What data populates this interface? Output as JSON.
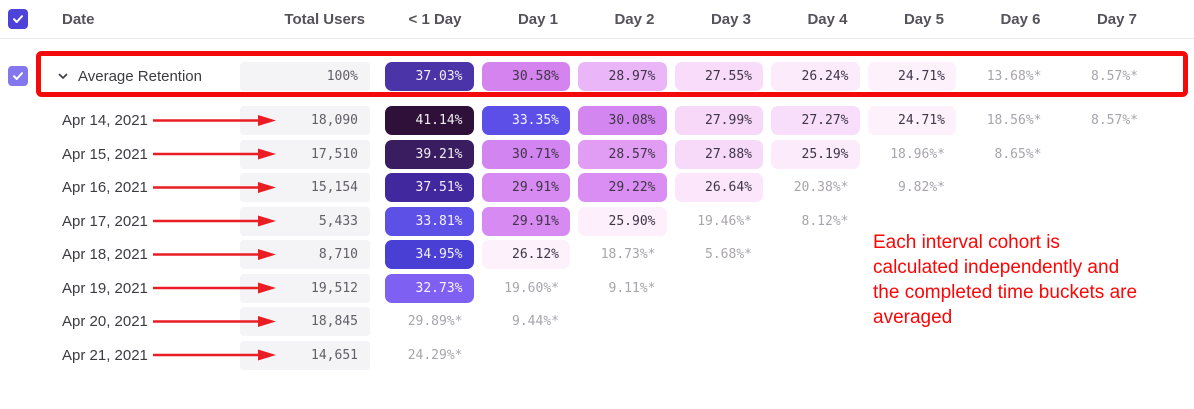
{
  "table": {
    "columns": [
      "Date",
      "Total Users",
      "< 1 Day",
      "Day 1",
      "Day 2",
      "Day 3",
      "Day 4",
      "Day 5",
      "Day 6",
      "Day 7"
    ],
    "rows": [
      {
        "label": "Average Retention",
        "type": "average",
        "total": "100%",
        "cells": [
          {
            "v": "37.03%",
            "bg": "#4b33a8",
            "tone": "light"
          },
          {
            "v": "30.58%",
            "bg": "#d583ef",
            "tone": "dark"
          },
          {
            "v": "28.97%",
            "bg": "#eab6f7",
            "tone": "dark"
          },
          {
            "v": "27.55%",
            "bg": "#f8dcfa",
            "tone": "dark"
          },
          {
            "v": "26.24%",
            "bg": "#fcecfb",
            "tone": "dark"
          },
          {
            "v": "24.71%",
            "bg": "#fdf1fc",
            "tone": "dark"
          },
          {
            "v": "13.68%*",
            "tone": "muted"
          },
          {
            "v": "8.57%*",
            "tone": "muted"
          }
        ]
      },
      {
        "label": "Apr 14, 2021",
        "type": "date",
        "total": "18,090",
        "cells": [
          {
            "v": "41.14%",
            "bg": "#2e1038",
            "tone": "light"
          },
          {
            "v": "33.35%",
            "bg": "#5b4fe8",
            "tone": "light"
          },
          {
            "v": "30.08%",
            "bg": "#d486f0",
            "tone": "dark"
          },
          {
            "v": "27.99%",
            "bg": "#f7d8f9",
            "tone": "dark"
          },
          {
            "v": "27.27%",
            "bg": "#f8defa",
            "tone": "dark"
          },
          {
            "v": "24.71%",
            "bg": "#fdf1fc",
            "tone": "dark"
          },
          {
            "v": "18.56%*",
            "tone": "muted"
          },
          {
            "v": "8.57%*",
            "tone": "muted"
          }
        ]
      },
      {
        "label": "Apr 15, 2021",
        "type": "date",
        "total": "17,510",
        "cells": [
          {
            "v": "39.21%",
            "bg": "#3a1c61",
            "tone": "light"
          },
          {
            "v": "30.71%",
            "bg": "#d284f0",
            "tone": "dark"
          },
          {
            "v": "28.57%",
            "bg": "#e19df4",
            "tone": "dark"
          },
          {
            "v": "27.88%",
            "bg": "#f7d9f9",
            "tone": "dark"
          },
          {
            "v": "25.19%",
            "bg": "#fcebfb",
            "tone": "dark"
          },
          {
            "v": "18.96%*",
            "tone": "muted"
          },
          {
            "v": "8.65%*",
            "tone": "muted"
          }
        ]
      },
      {
        "label": "Apr 16, 2021",
        "type": "date",
        "total": "15,154",
        "cells": [
          {
            "v": "37.51%",
            "bg": "#42289e",
            "tone": "light"
          },
          {
            "v": "29.91%",
            "bg": "#d78af1",
            "tone": "dark"
          },
          {
            "v": "29.22%",
            "bg": "#da8df2",
            "tone": "dark"
          },
          {
            "v": "26.64%",
            "bg": "#fbe6fb",
            "tone": "dark"
          },
          {
            "v": "20.38%*",
            "tone": "muted"
          },
          {
            "v": "9.82%*",
            "tone": "muted"
          }
        ]
      },
      {
        "label": "Apr 17, 2021",
        "type": "date",
        "total": "5,433",
        "cells": [
          {
            "v": "33.81%",
            "bg": "#5d50e6",
            "tone": "light"
          },
          {
            "v": "29.91%",
            "bg": "#d78af1",
            "tone": "dark"
          },
          {
            "v": "25.90%",
            "bg": "#fdeffc",
            "tone": "dark"
          },
          {
            "v": "19.46%*",
            "tone": "muted"
          },
          {
            "v": "8.12%*",
            "tone": "muted"
          }
        ]
      },
      {
        "label": "Apr 18, 2021",
        "type": "date",
        "total": "8,710",
        "cells": [
          {
            "v": "34.95%",
            "bg": "#4a3fd4",
            "tone": "light"
          },
          {
            "v": "26.12%",
            "bg": "#fdf1fc",
            "tone": "dark"
          },
          {
            "v": "18.73%*",
            "tone": "muted"
          },
          {
            "v": "5.68%*",
            "tone": "muted"
          }
        ]
      },
      {
        "label": "Apr 19, 2021",
        "type": "date",
        "total": "19,512",
        "cells": [
          {
            "v": "32.73%",
            "bg": "#7e60f2",
            "tone": "light"
          },
          {
            "v": "19.60%*",
            "tone": "muted"
          },
          {
            "v": "9.11%*",
            "tone": "muted"
          }
        ]
      },
      {
        "label": "Apr 20, 2021",
        "type": "date",
        "total": "18,845",
        "cells": [
          {
            "v": "29.89%*",
            "tone": "muted"
          },
          {
            "v": "9.44%*",
            "tone": "muted"
          }
        ]
      },
      {
        "label": "Apr 21, 2021",
        "type": "date",
        "total": "14,651",
        "cells": [
          {
            "v": "24.29%*",
            "tone": "muted"
          }
        ]
      }
    ]
  },
  "annotations": {
    "note_lines": [
      "Each interval cohort is",
      "calculated independently and",
      "the completed time buckets are",
      "averaged"
    ],
    "note_color": "#fb0606",
    "highlight_color": "#f30b0b",
    "arrow_color": "#ea1c24"
  },
  "colors": {
    "select_all_checkbox": "#4e43d8",
    "average_row_checkbox": "#8476ec",
    "total_cell_bg": "#f4f3f5",
    "header_text": "#55525b",
    "muted_text": "#a7a4ac"
  },
  "icons": {
    "checkmark": "check-icon",
    "chevron": "chevron-down-icon"
  }
}
